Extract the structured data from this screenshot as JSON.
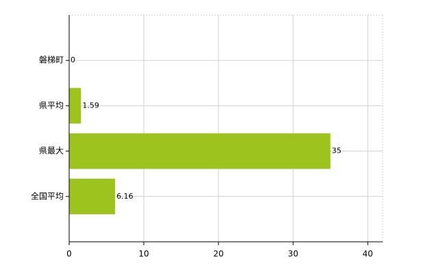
{
  "chart_data": {
    "type": "bar",
    "orientation": "horizontal",
    "categories": [
      "磐梯町",
      "県平均",
      "県最大",
      "全国平均"
    ],
    "values": [
      0,
      1.59,
      35,
      6.16
    ],
    "color": "#9dc41e",
    "xlim": [
      0,
      42
    ],
    "xticks": [
      0,
      10,
      20,
      30,
      40
    ],
    "grid": true
  }
}
